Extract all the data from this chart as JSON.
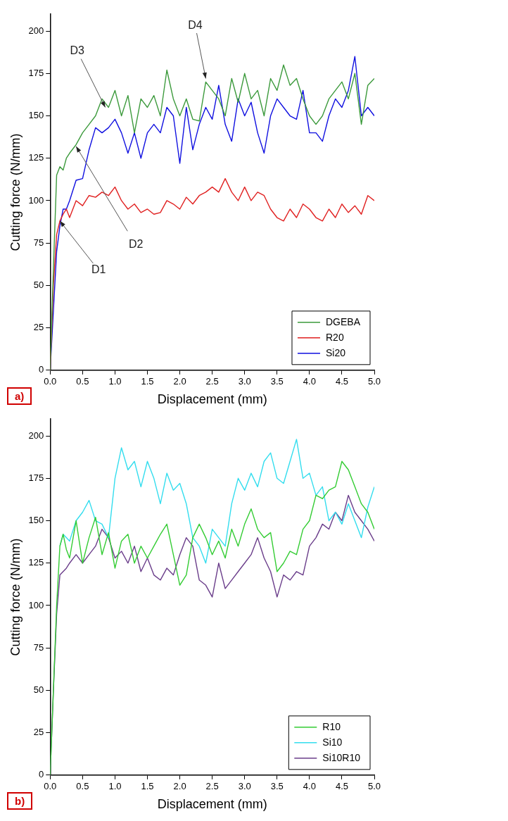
{
  "chart_data": [
    {
      "type": "line",
      "xlabel": "Displacement (mm)",
      "ylabel": "Cutting force (N/mm)",
      "xlim": [
        0,
        5
      ],
      "ylim": [
        0,
        210
      ],
      "xticks": [
        {
          "value": 0,
          "label": "0.0"
        },
        {
          "value": 0.5,
          "label": "0.5"
        },
        {
          "value": 1,
          "label": "1.0"
        },
        {
          "value": 1.5,
          "label": "1.5"
        },
        {
          "value": 2,
          "label": "2.0"
        },
        {
          "value": 2.5,
          "label": "2.5"
        },
        {
          "value": 3,
          "label": "3.0"
        },
        {
          "value": 3.5,
          "label": "3.5"
        },
        {
          "value": 4,
          "label": "4.0"
        },
        {
          "value": 4.5,
          "label": "4.5"
        },
        {
          "value": 5,
          "label": "5.0"
        }
      ],
      "yticks": [
        0,
        25,
        50,
        75,
        100,
        125,
        150,
        175,
        200
      ],
      "grid": false,
      "legend": "bottom right",
      "marker": "none",
      "line_style": "solid",
      "x": [
        0,
        0.05,
        0.1,
        0.15,
        0.2,
        0.25,
        0.3,
        0.4,
        0.5,
        0.6,
        0.7,
        0.8,
        0.9,
        1.0,
        1.1,
        1.2,
        1.3,
        1.4,
        1.5,
        1.6,
        1.7,
        1.8,
        1.9,
        2.0,
        2.1,
        2.2,
        2.3,
        2.4,
        2.5,
        2.6,
        2.7,
        2.8,
        2.9,
        3.0,
        3.1,
        3.2,
        3.3,
        3.4,
        3.5,
        3.6,
        3.7,
        3.8,
        3.9,
        4.0,
        4.1,
        4.2,
        4.3,
        4.4,
        4.5,
        4.6,
        4.7,
        4.8,
        4.9,
        5.0
      ],
      "series": [
        {
          "name": "DGEBA",
          "color": "#3c9a3c",
          "values": [
            0,
            60,
            115,
            120,
            118,
            125,
            128,
            133,
            140,
            145,
            150,
            160,
            155,
            165,
            150,
            162,
            140,
            160,
            155,
            162,
            150,
            177,
            160,
            150,
            160,
            148,
            147,
            170,
            165,
            160,
            150,
            172,
            158,
            175,
            160,
            165,
            150,
            172,
            165,
            180,
            168,
            172,
            160,
            150,
            145,
            150,
            160,
            165,
            170,
            160,
            175,
            145,
            168,
            172
          ]
        },
        {
          "name": "R20",
          "color": "#e02020",
          "values": [
            0,
            50,
            80,
            88,
            92,
            95,
            90,
            100,
            97,
            103,
            102,
            105,
            103,
            108,
            100,
            95,
            98,
            93,
            95,
            92,
            93,
            100,
            98,
            95,
            102,
            98,
            103,
            105,
            108,
            105,
            113,
            105,
            100,
            108,
            100,
            105,
            103,
            95,
            90,
            88,
            95,
            90,
            98,
            95,
            90,
            88,
            95,
            90,
            98,
            93,
            97,
            92,
            103,
            100
          ]
        },
        {
          "name": "Si20",
          "color": "#1010e0",
          "values": [
            0,
            35,
            70,
            85,
            95,
            95,
            100,
            112,
            113,
            130,
            143,
            140,
            143,
            148,
            140,
            128,
            140,
            125,
            140,
            145,
            140,
            155,
            150,
            122,
            155,
            130,
            145,
            155,
            148,
            168,
            145,
            135,
            160,
            150,
            158,
            140,
            128,
            150,
            160,
            155,
            150,
            148,
            165,
            140,
            140,
            135,
            150,
            160,
            155,
            165,
            185,
            150,
            155,
            150
          ]
        }
      ],
      "annotations": [
        "a)",
        {
          "text": "D1",
          "x": 0.15,
          "y": 88
        },
        {
          "text": "D2",
          "x": 0.4,
          "y": 132
        },
        {
          "text": "D3",
          "x": 0.85,
          "y": 155
        },
        {
          "text": "D4",
          "x": 2.4,
          "y": 172
        }
      ]
    },
    {
      "type": "line",
      "xlabel": "Displacement (mm)",
      "ylabel": "Cutting force (N/mm)",
      "xlim": [
        0,
        5
      ],
      "ylim": [
        0,
        210
      ],
      "xticks": [
        {
          "value": 0,
          "label": "0.0"
        },
        {
          "value": 0.5,
          "label": "0.5"
        },
        {
          "value": 1,
          "label": "1.0"
        },
        {
          "value": 1.5,
          "label": "1.5"
        },
        {
          "value": 2,
          "label": "2.0"
        },
        {
          "value": 2.5,
          "label": "2.5"
        },
        {
          "value": 3,
          "label": "3.0"
        },
        {
          "value": 3.5,
          "label": "3.5"
        },
        {
          "value": 4,
          "label": "4.0"
        },
        {
          "value": 4.5,
          "label": "4.5"
        },
        {
          "value": 5,
          "label": "5.0"
        }
      ],
      "yticks": [
        0,
        25,
        50,
        75,
        100,
        125,
        150,
        175,
        200
      ],
      "grid": false,
      "legend": "bottom right",
      "marker": "none",
      "line_style": "solid",
      "x": [
        0,
        0.05,
        0.1,
        0.15,
        0.2,
        0.25,
        0.3,
        0.4,
        0.5,
        0.6,
        0.7,
        0.8,
        0.9,
        1.0,
        1.1,
        1.2,
        1.3,
        1.4,
        1.5,
        1.6,
        1.7,
        1.8,
        1.9,
        2.0,
        2.1,
        2.2,
        2.3,
        2.4,
        2.5,
        2.6,
        2.7,
        2.8,
        2.9,
        3.0,
        3.1,
        3.2,
        3.3,
        3.4,
        3.5,
        3.6,
        3.7,
        3.8,
        3.9,
        4.0,
        4.1,
        4.2,
        4.3,
        4.4,
        4.5,
        4.6,
        4.7,
        4.8,
        4.9,
        5.0
      ],
      "series": [
        {
          "name": "R10",
          "color": "#33cc33",
          "values": [
            0,
            50,
            100,
            135,
            142,
            133,
            128,
            150,
            125,
            140,
            152,
            130,
            143,
            122,
            138,
            142,
            125,
            135,
            128,
            135,
            142,
            148,
            130,
            112,
            118,
            140,
            148,
            140,
            130,
            138,
            128,
            145,
            135,
            148,
            157,
            145,
            140,
            143,
            120,
            125,
            132,
            130,
            145,
            150,
            165,
            163,
            168,
            170,
            185,
            180,
            170,
            160,
            155,
            145
          ]
        },
        {
          "name": "Si10",
          "color": "#33ddee",
          "values": [
            null,
            null,
            null,
            135,
            142,
            140,
            138,
            150,
            155,
            162,
            150,
            148,
            140,
            175,
            193,
            180,
            185,
            170,
            185,
            175,
            160,
            178,
            168,
            172,
            160,
            140,
            135,
            125,
            145,
            140,
            135,
            160,
            175,
            168,
            178,
            170,
            185,
            190,
            175,
            172,
            185,
            198,
            175,
            178,
            165,
            170,
            150,
            155,
            148,
            160,
            150,
            140,
            158,
            170
          ]
        },
        {
          "name": "Si10R10",
          "color": "#6a3d8a",
          "values": [
            0,
            50,
            95,
            118,
            120,
            122,
            125,
            130,
            125,
            130,
            135,
            145,
            140,
            128,
            132,
            125,
            135,
            120,
            128,
            118,
            115,
            122,
            118,
            130,
            140,
            135,
            115,
            112,
            105,
            125,
            110,
            115,
            120,
            125,
            130,
            140,
            128,
            120,
            105,
            118,
            115,
            120,
            118,
            135,
            140,
            148,
            145,
            155,
            150,
            165,
            155,
            150,
            145,
            138
          ]
        }
      ],
      "annotations": [
        "b)"
      ]
    }
  ]
}
